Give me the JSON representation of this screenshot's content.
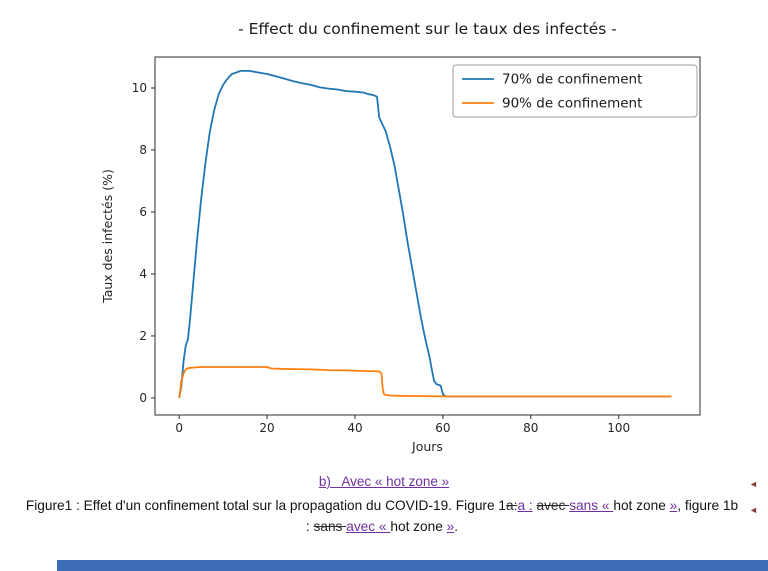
{
  "caption": {
    "heading": "b)   Avec « hot zone »",
    "segments": [
      {
        "text": "Figure1 : Effet d'un confinement total sur la propagation du COVID-19. Figure 1",
        "style": "normal"
      },
      {
        "text": "a:",
        "style": "del"
      },
      {
        "text": "a :",
        "style": "ins"
      },
      {
        "text": " ",
        "style": "normal"
      },
      {
        "text": "avec ",
        "style": "del"
      },
      {
        "text": "sans ",
        "style": "ins"
      },
      {
        "text": "« ",
        "style": "ins"
      },
      {
        "text": "hot zone ",
        "style": "normal"
      },
      {
        "text": "»",
        "style": "ins"
      },
      {
        "text": ", figure 1b : ",
        "style": "normal"
      },
      {
        "text": "sans ",
        "style": "del"
      },
      {
        "text": "avec ",
        "style": "ins"
      },
      {
        "text": "« ",
        "style": "ins"
      },
      {
        "text": "hot zone ",
        "style": "normal"
      },
      {
        "text": "»",
        "style": "ins"
      },
      {
        "text": ".",
        "style": "normal"
      }
    ]
  },
  "revision_markers": {
    "glyph": "◄",
    "color": "#8a3a35"
  },
  "colors": {
    "revision_purple": "#7030a0",
    "bottom_bar_blue": "#3c6db5",
    "series_blue": "#1f77b4",
    "series_orange": "#ff7f0e"
  },
  "chart_data": {
    "type": "line",
    "title": "- Effect du confinement sur le taux des infectés -",
    "xlabel": "Jours",
    "ylabel": "Taux des infectés (%)",
    "xlim": [
      -5.5,
      118.5
    ],
    "ylim": [
      -0.55,
      11.0
    ],
    "xticks": [
      0,
      20,
      40,
      60,
      80,
      100
    ],
    "yticks": [
      0,
      2,
      4,
      6,
      8,
      10
    ],
    "grid": false,
    "legend_position": "upper right",
    "series": [
      {
        "name": "70% de confinement",
        "color": "#1f77b4",
        "points": [
          [
            0,
            0
          ],
          [
            0.5,
            0.4
          ],
          [
            1,
            1.2
          ],
          [
            1.5,
            1.7
          ],
          [
            2,
            1.9
          ],
          [
            2.5,
            2.6
          ],
          [
            3,
            3.4
          ],
          [
            4,
            5.0
          ],
          [
            5,
            6.4
          ],
          [
            6,
            7.6
          ],
          [
            7,
            8.6
          ],
          [
            8,
            9.3
          ],
          [
            9,
            9.8
          ],
          [
            10,
            10.1
          ],
          [
            11,
            10.3
          ],
          [
            12,
            10.45
          ],
          [
            13,
            10.5
          ],
          [
            14,
            10.55
          ],
          [
            16,
            10.55
          ],
          [
            18,
            10.5
          ],
          [
            20,
            10.45
          ],
          [
            22,
            10.38
          ],
          [
            24,
            10.3
          ],
          [
            26,
            10.22
          ],
          [
            28,
            10.15
          ],
          [
            30,
            10.1
          ],
          [
            32,
            10.02
          ],
          [
            34,
            9.98
          ],
          [
            36,
            9.95
          ],
          [
            38,
            9.9
          ],
          [
            40,
            9.88
          ],
          [
            42,
            9.85
          ],
          [
            43,
            9.8
          ],
          [
            44,
            9.78
          ],
          [
            44.5,
            9.75
          ],
          [
            45,
            9.72
          ],
          [
            45.5,
            9.05
          ],
          [
            46,
            8.9
          ],
          [
            47,
            8.6
          ],
          [
            48,
            8.1
          ],
          [
            49,
            7.5
          ],
          [
            50,
            6.7
          ],
          [
            51,
            5.9
          ],
          [
            52,
            5.0
          ],
          [
            53,
            4.2
          ],
          [
            54,
            3.4
          ],
          [
            55,
            2.6
          ],
          [
            56,
            1.9
          ],
          [
            57,
            1.3
          ],
          [
            57.5,
            0.9
          ],
          [
            58,
            0.55
          ],
          [
            58.5,
            0.45
          ],
          [
            59,
            0.42
          ],
          [
            59.5,
            0.4
          ],
          [
            60,
            0.12
          ],
          [
            60.5,
            0.06
          ],
          [
            61,
            0.05
          ],
          [
            65,
            0.05
          ],
          [
            70,
            0.05
          ],
          [
            80,
            0.05
          ],
          [
            90,
            0.05
          ],
          [
            100,
            0.05
          ],
          [
            112,
            0.05
          ]
        ]
      },
      {
        "name": "90% de confinement",
        "color": "#ff7f0e",
        "points": [
          [
            0,
            0
          ],
          [
            0.5,
            0.55
          ],
          [
            1,
            0.8
          ],
          [
            1.5,
            0.92
          ],
          [
            2,
            0.96
          ],
          [
            3,
            0.98
          ],
          [
            5,
            1.0
          ],
          [
            8,
            1.0
          ],
          [
            12,
            1.0
          ],
          [
            16,
            1.0
          ],
          [
            20,
            1.0
          ],
          [
            20.5,
            0.97
          ],
          [
            21,
            0.95
          ],
          [
            23,
            0.94
          ],
          [
            26,
            0.93
          ],
          [
            30,
            0.92
          ],
          [
            34,
            0.9
          ],
          [
            38,
            0.89
          ],
          [
            42,
            0.87
          ],
          [
            45,
            0.86
          ],
          [
            45.5,
            0.85
          ],
          [
            46,
            0.8
          ],
          [
            46.3,
            0.3
          ],
          [
            46.6,
            0.12
          ],
          [
            47,
            0.1
          ],
          [
            48,
            0.08
          ],
          [
            50,
            0.07
          ],
          [
            55,
            0.06
          ],
          [
            60,
            0.05
          ],
          [
            70,
            0.05
          ],
          [
            80,
            0.05
          ],
          [
            90,
            0.05
          ],
          [
            100,
            0.05
          ],
          [
            112,
            0.05
          ]
        ]
      }
    ]
  }
}
